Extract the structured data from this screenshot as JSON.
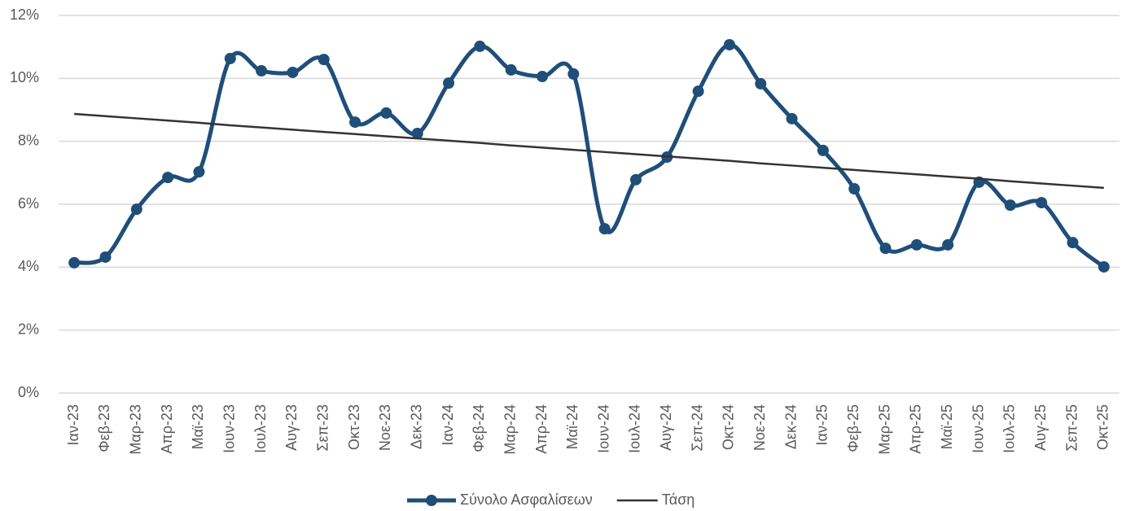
{
  "chart_data": {
    "type": "line",
    "categories": [
      "Ιαν-23",
      "Φεβ-23",
      "Μαρ-23",
      "Απρ-23",
      "Μαϊ-23",
      "Ιουν-23",
      "Ιουλ-23",
      "Αυγ-23",
      "Σεπ-23",
      "Οκτ-23",
      "Νοε-23",
      "Δεκ-23",
      "Ιαν-24",
      "Φεβ-24",
      "Μαρ-24",
      "Απρ-24",
      "Μαϊ-24",
      "Ιουν-24",
      "Ιουλ-24",
      "Αυγ-24",
      "Σεπ-24",
      "Οκτ-24",
      "Νοε-24",
      "Δεκ-24",
      "Ιαν-25",
      "Φεβ-25",
      "Μαρ-25",
      "Απρ-25",
      "Μαϊ-25",
      "Ιουν-25",
      "Ιουλ-25",
      "Αυγ-25",
      "Σεπ-25",
      "Οκτ-25"
    ],
    "series": [
      {
        "name": "Σύνολο Ασφαλίσεων",
        "color": "#1f4e79",
        "smooth": true,
        "markers": true,
        "values": [
          4.14,
          4.32,
          5.84,
          6.85,
          7.03,
          10.63,
          10.24,
          10.19,
          10.6,
          8.61,
          8.9,
          8.25,
          9.85,
          11.02,
          10.27,
          10.06,
          10.14,
          5.22,
          6.78,
          7.5,
          9.59,
          11.07,
          9.83,
          8.72,
          7.71,
          6.49,
          4.6,
          4.71,
          4.71,
          6.7,
          5.97,
          6.05,
          4.78,
          4.01
        ]
      },
      {
        "name": "Τάση",
        "color": "#333333",
        "smooth": false,
        "markers": false,
        "values": [
          8.87,
          8.8,
          8.73,
          8.66,
          8.59,
          8.51,
          8.44,
          8.37,
          8.3,
          8.23,
          8.16,
          8.09,
          8.02,
          7.95,
          7.87,
          7.8,
          7.73,
          7.66,
          7.59,
          7.52,
          7.45,
          7.38,
          7.3,
          7.23,
          7.16,
          7.09,
          7.02,
          6.95,
          6.88,
          6.81,
          6.73,
          6.66,
          6.59,
          6.52
        ]
      }
    ],
    "ylim": [
      0,
      12
    ],
    "yticks": [
      {
        "value": 0,
        "label": "0%"
      },
      {
        "value": 2,
        "label": "2%"
      },
      {
        "value": 4,
        "label": "4%"
      },
      {
        "value": 6,
        "label": "6%"
      },
      {
        "value": 8,
        "label": "8%"
      },
      {
        "value": 10,
        "label": "10%"
      },
      {
        "value": 12,
        "label": "12%"
      }
    ],
    "grid": true,
    "legend": "bottom"
  }
}
